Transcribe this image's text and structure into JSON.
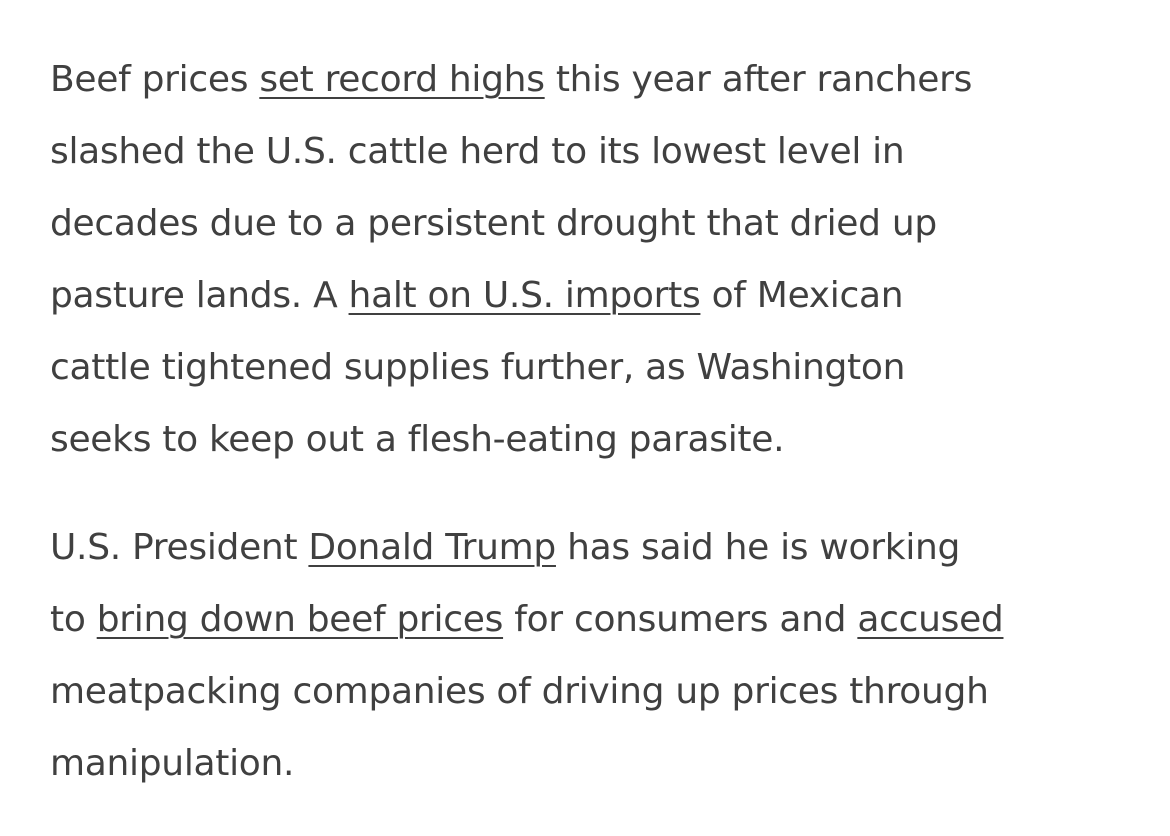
{
  "article": {
    "paragraphs": [
      {
        "lines": [
          [
            {
              "text": "Beef prices "
            },
            {
              "text": "set record highs",
              "link": true
            },
            {
              "text": " this year after ranchers"
            }
          ],
          [
            {
              "text": "slashed the U.S. cattle herd to its lowest level in"
            }
          ],
          [
            {
              "text": "decades due to a persistent drought that dried up"
            }
          ],
          [
            {
              "text": "pasture lands. A "
            },
            {
              "text": "halt on U.S. imports",
              "link": true
            },
            {
              "text": " of Mexican"
            }
          ],
          [
            {
              "text": "cattle tightened supplies further, as Washington"
            }
          ],
          [
            {
              "text": "seeks to keep out a flesh-eating parasite."
            }
          ]
        ]
      },
      {
        "lines": [
          [
            {
              "text": "U.S. President "
            },
            {
              "text": "Donald Trump",
              "link": true
            },
            {
              "text": " has said he is working"
            }
          ],
          [
            {
              "text": "to "
            },
            {
              "text": "bring down beef prices",
              "link": true
            },
            {
              "text": " for consumers and "
            },
            {
              "text": "accused",
              "link": true
            }
          ],
          [
            {
              "text": "meatpacking companies of driving up prices through"
            }
          ],
          [
            {
              "text": "manipulation."
            }
          ]
        ]
      }
    ]
  },
  "colors": {
    "text": "#404040",
    "background": "#ffffff"
  }
}
